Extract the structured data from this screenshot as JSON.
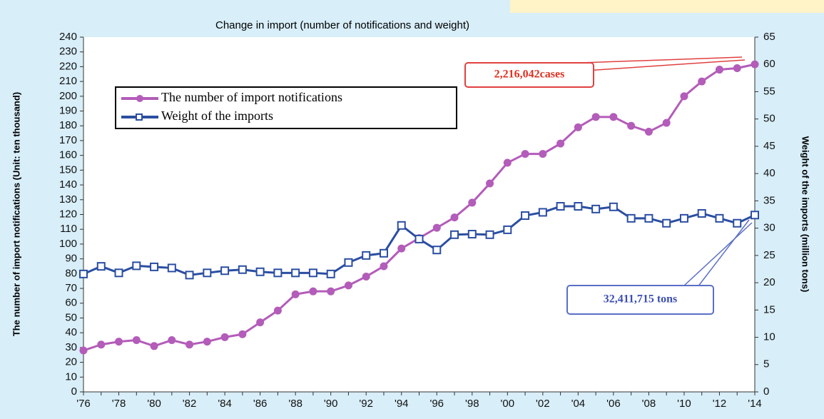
{
  "chart_data": {
    "type": "line",
    "title": "Change in import (number of notifications and weight)",
    "y_label": "The number of import notifications (Unit: ten thousand)",
    "y2_label": "Weight of the imports (million tons)",
    "categories": [
      "'76",
      null,
      "'78",
      null,
      "'80",
      null,
      "'82",
      null,
      "'84",
      null,
      "'86",
      null,
      "'88",
      null,
      "'90",
      null,
      "'92",
      null,
      "'94",
      null,
      "'96",
      null,
      "'98",
      null,
      "'00",
      null,
      "'02",
      null,
      "'04",
      null,
      "'06",
      null,
      "'08",
      null,
      "'10",
      null,
      "'12",
      null,
      "'14"
    ],
    "series": [
      {
        "name": "The number of import notifications",
        "color": "#b35cb9",
        "marker": "circle",
        "values": [
          28,
          32,
          34,
          35,
          31,
          35,
          32,
          34,
          37,
          39,
          47,
          55,
          66,
          68,
          68,
          72,
          78,
          85,
          97,
          104,
          111,
          118,
          128,
          141,
          155,
          161,
          161,
          168,
          179,
          186,
          186,
          180,
          176,
          182,
          200,
          210,
          218,
          219,
          221.6
        ]
      },
      {
        "name": "Weight of the imports",
        "color": "#2b4ea2",
        "marker": "square",
        "axis": "y2",
        "values": [
          21.6,
          23,
          21.8,
          23.1,
          22.9,
          22.7,
          21.4,
          21.8,
          22.2,
          22.4,
          22,
          21.8,
          21.8,
          21.8,
          21.6,
          23.7,
          25,
          25.4,
          30.5,
          28,
          26,
          28.8,
          28.9,
          28.8,
          29.7,
          32.3,
          32.9,
          34,
          34,
          33.5,
          33.9,
          31.8,
          31.8,
          30.9,
          31.8,
          32.7,
          31.8,
          30.9,
          32.4
        ]
      }
    ],
    "annotations": [
      "2,216,042cases",
      "32,411,715 tons"
    ],
    "ylim": [
      0,
      240
    ],
    "yticks": [
      0,
      10,
      20,
      30,
      40,
      50,
      60,
      70,
      80,
      90,
      100,
      110,
      120,
      130,
      140,
      150,
      160,
      170,
      180,
      190,
      200,
      210,
      220,
      230,
      240
    ],
    "y2lim": [
      0,
      65
    ],
    "y2ticks": [
      0,
      5,
      10,
      15,
      20,
      25,
      30,
      35,
      40,
      45,
      50,
      55,
      60,
      65
    ],
    "legend": "upper left",
    "grid": false
  }
}
